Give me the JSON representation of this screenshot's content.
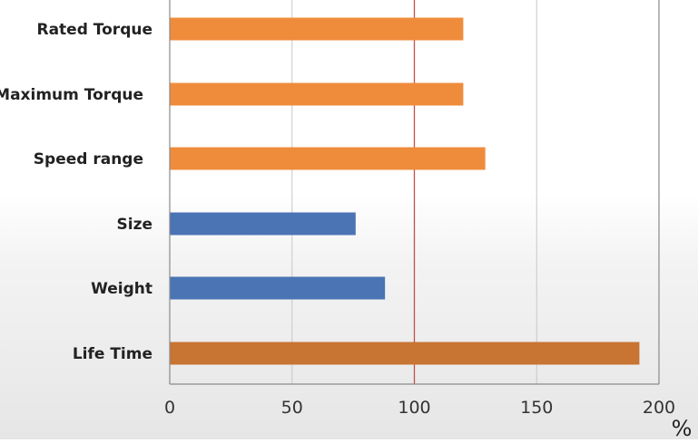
{
  "chart_data": {
    "type": "bar",
    "orientation": "horizontal",
    "title": "",
    "xlabel": "",
    "ylabel": "",
    "unit_label": "%",
    "categories": [
      "Rated Torque",
      "Maximum Torque",
      "Speed range",
      "Size",
      "Weight",
      "Life Time"
    ],
    "values": [
      120,
      120,
      129,
      76,
      88,
      192
    ],
    "bar_colors": [
      "#ef8c3c",
      "#ef8c3c",
      "#ef8c3c",
      "#4a74b4",
      "#4a74b4",
      "#c87433"
    ],
    "xlim": [
      0,
      200
    ],
    "xticks": [
      0,
      50,
      100,
      150,
      200
    ],
    "grid": true,
    "reference_line": {
      "value": 100,
      "color": "#c0504d"
    },
    "legend": "none"
  }
}
